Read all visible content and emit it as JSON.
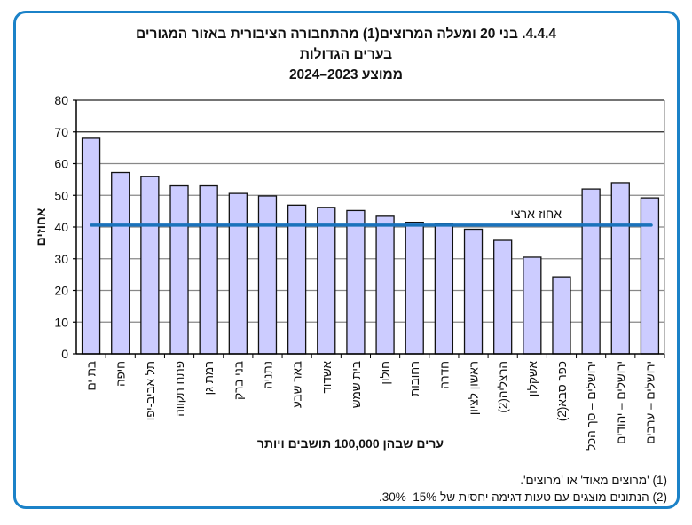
{
  "chart_data": {
    "type": "bar",
    "title_lines": [
      "4.4.4. בני 20 ומעלה המרוצים(1) מהתחבורה הציבורית באזור המגורים",
      "בערים הגדולות",
      "ממוצע 2023–2024"
    ],
    "xlabel": "ערים שבהן 100,000 תושבים ויותר",
    "ylabel": "אחוזים",
    "ylim": [
      0,
      80
    ],
    "yticks": [
      0,
      10,
      20,
      30,
      40,
      50,
      60,
      70,
      80
    ],
    "grid": true,
    "categories": [
      "בת ים",
      "חיפה",
      "תל אביב-יפו",
      "פתח תקווה",
      "רמת גן",
      "בני ברק",
      "נתניה",
      "באר שבע",
      "אשדוד",
      "בית שמש",
      "חולון",
      "רחובות",
      "חדרה",
      "ראשון לציון",
      "הרצליה(2)",
      "אשקלון",
      "כפר סבא(2)",
      "ירושלים – סך הכל",
      "ירושלים – יהודים",
      "ירושלים – ערבים"
    ],
    "values": [
      68.0,
      57.2,
      55.9,
      53.0,
      53.0,
      50.6,
      49.8,
      46.9,
      46.2,
      45.2,
      43.4,
      41.5,
      41.1,
      39.3,
      35.8,
      30.5,
      24.3,
      52.0,
      54.0,
      49.2
    ],
    "reference_line": {
      "label": "אחוז ארצי",
      "value": 40.6,
      "color": "#1a72bb"
    },
    "bar_color": "#ccccff",
    "footnotes": [
      "(1) 'מרוצים מאוד' או 'מרוצים'.",
      "(2) הנתונים מוצגים עם טעות דגימה יחסית של 15%–30%."
    ]
  }
}
